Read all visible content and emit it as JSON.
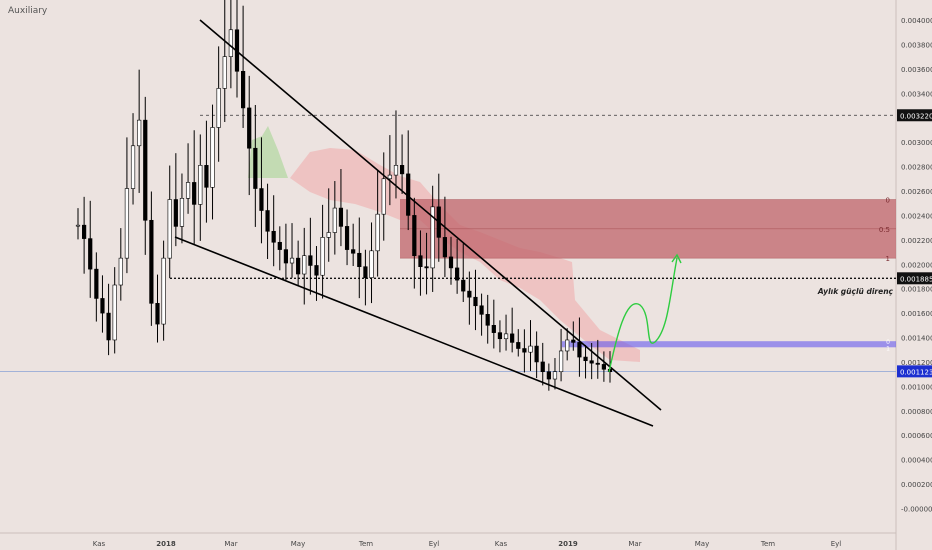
{
  "header": {
    "symbol": "Auxiliary"
  },
  "chart_data": {
    "type": "candlestick",
    "y_axis": {
      "position": "right",
      "ticks": [
        0.004,
        0.0038,
        0.0036,
        0.0034,
        0.0032,
        0.003,
        0.0028,
        0.0026,
        0.0024,
        0.0022,
        0.002,
        0.0018,
        0.0016,
        0.0014,
        0.0012,
        0.001,
        0.0008,
        0.0006,
        0.0004,
        0.0002,
        0.0
      ],
      "tick_labels": [
        "0.004000",
        "0.003800",
        "0.003600",
        "0.003400",
        "0.003200",
        "0.003000",
        "0.002800",
        "0.002600",
        "0.002400",
        "0.002200",
        "0.002000",
        "0.001800",
        "0.001600",
        "0.001400",
        "0.001200",
        "0.001000",
        "0.000800",
        "0.000600",
        "0.000400",
        "0.000200",
        "-0.000000"
      ],
      "ylim": [
        -0.0001,
        0.00416
      ]
    },
    "x_axis": {
      "tick_labels": [
        "Kas",
        "2018",
        "Mar",
        "May",
        "Tem",
        "Eyl",
        "Kas",
        "2019",
        "Mar",
        "May",
        "Tem",
        "Eyl"
      ],
      "bold_labels": [
        "2018",
        "2019"
      ]
    },
    "price_labels": [
      {
        "value": 0.00322,
        "text": "0.003220",
        "style": "dark"
      },
      {
        "value": 0.001885,
        "text": "0.001885",
        "style": "dark"
      },
      {
        "value": 0.001123,
        "text": "0.001123",
        "style": "blue"
      }
    ],
    "horizontal_lines": [
      {
        "value": 0.00322,
        "style": "dashed"
      },
      {
        "value": 0.001885,
        "style": "dotted"
      },
      {
        "value": 0.001123,
        "style": "thin-blue"
      }
    ],
    "annotations": [
      {
        "text": "Aylık güçlü direnç",
        "value": 0.00183
      }
    ],
    "fib_zone": {
      "top": 0.00253,
      "bottom": 0.00205,
      "color": "#c0646b",
      "levels": [
        {
          "label": "0",
          "value": 0.00253
        },
        {
          "label": "0.5",
          "value": 0.00229
        },
        {
          "label": "1",
          "value": 0.00205
        }
      ]
    },
    "blue_zone": {
      "top": 0.00137,
      "bottom": 0.00132,
      "color": "#5a4cf0",
      "levels": [
        {
          "label": "0",
          "value": 0.00137
        },
        {
          "label": "1",
          "value": 0.00132
        }
      ]
    },
    "projection_path": [
      [
        0.001123,
        "2019-02-05"
      ],
      [
        0.0015,
        "2019-02-25"
      ],
      [
        0.00137,
        "2019-03-10"
      ],
      [
        0.00207,
        "2019-04-05"
      ]
    ],
    "series": [
      {
        "name": "price",
        "values": [
          0.00232,
          0.00221,
          0.00196,
          0.00172,
          0.0016,
          0.00138,
          0.00183,
          0.00205,
          0.00262,
          0.00297,
          0.00318,
          0.00236,
          0.00168,
          0.00151,
          0.00205,
          0.00253,
          0.00231,
          0.00254,
          0.00267,
          0.00249,
          0.00281,
          0.00263,
          0.00312,
          0.00344,
          0.0037,
          0.00392,
          0.00358,
          0.00328,
          0.00295,
          0.00262,
          0.00244,
          0.00227,
          0.00218,
          0.00212,
          0.00201,
          0.00205,
          0.00192,
          0.00207,
          0.00199,
          0.00191,
          0.00222,
          0.00226,
          0.00246,
          0.00231,
          0.00212,
          0.00209,
          0.00198,
          0.00189,
          0.00211,
          0.00241,
          0.0027,
          0.00273,
          0.00281,
          0.00274,
          0.0024,
          0.00207,
          0.00198,
          0.00197,
          0.00247,
          0.00222,
          0.00206,
          0.00197,
          0.00187,
          0.00178,
          0.00173,
          0.00166,
          0.00159,
          0.0015,
          0.00144,
          0.00139,
          0.00143,
          0.00136,
          0.00131,
          0.00128,
          0.00133,
          0.0012,
          0.00112,
          0.00106,
          0.00112,
          0.00129,
          0.00138,
          0.00136,
          0.00124,
          0.00121,
          0.00119,
          0.00118,
          0.00114,
          0.00112
        ]
      }
    ],
    "trend_lines": [
      {
        "from": [
          "2018-01-25",
          0.00385
        ],
        "to": [
          "2019-04-15",
          0.00084
        ]
      },
      {
        "from": [
          "2017-12-20",
          0.00232
        ],
        "to": [
          "2019-04-10",
          0.0007
        ]
      }
    ],
    "colors": {
      "background": "#ece3e0",
      "candle": "#000000",
      "projection": "#2ecc40",
      "cloud_red": "#f0b5b5",
      "cloud_green": "#b9d8a8"
    }
  }
}
